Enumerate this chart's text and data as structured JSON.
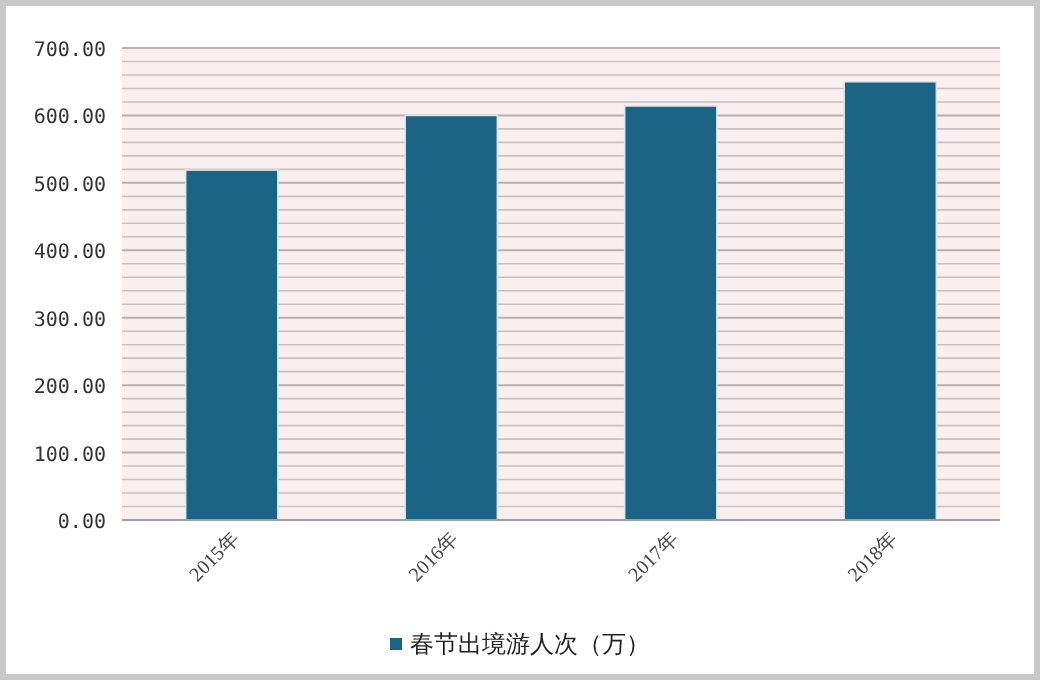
{
  "chart_data": {
    "type": "bar",
    "categories": [
      "2015年",
      "2016年",
      "2017年",
      "2018年"
    ],
    "series": [
      {
        "name": "春节出境游人次（万）",
        "color": "#1b6486",
        "values": [
          519,
          600,
          614,
          650
        ]
      }
    ],
    "ylim": [
      0,
      700
    ],
    "yticks": [
      {
        "value": 0,
        "label": "0.00"
      },
      {
        "value": 100,
        "label": "100.00"
      },
      {
        "value": 200,
        "label": "200.00"
      },
      {
        "value": 300,
        "label": "300.00"
      },
      {
        "value": 400,
        "label": "400.00"
      },
      {
        "value": 500,
        "label": "500.00"
      },
      {
        "value": 600,
        "label": "600.00"
      },
      {
        "value": 700,
        "label": "700.00"
      }
    ],
    "grid": "y",
    "legend": "bottom"
  }
}
